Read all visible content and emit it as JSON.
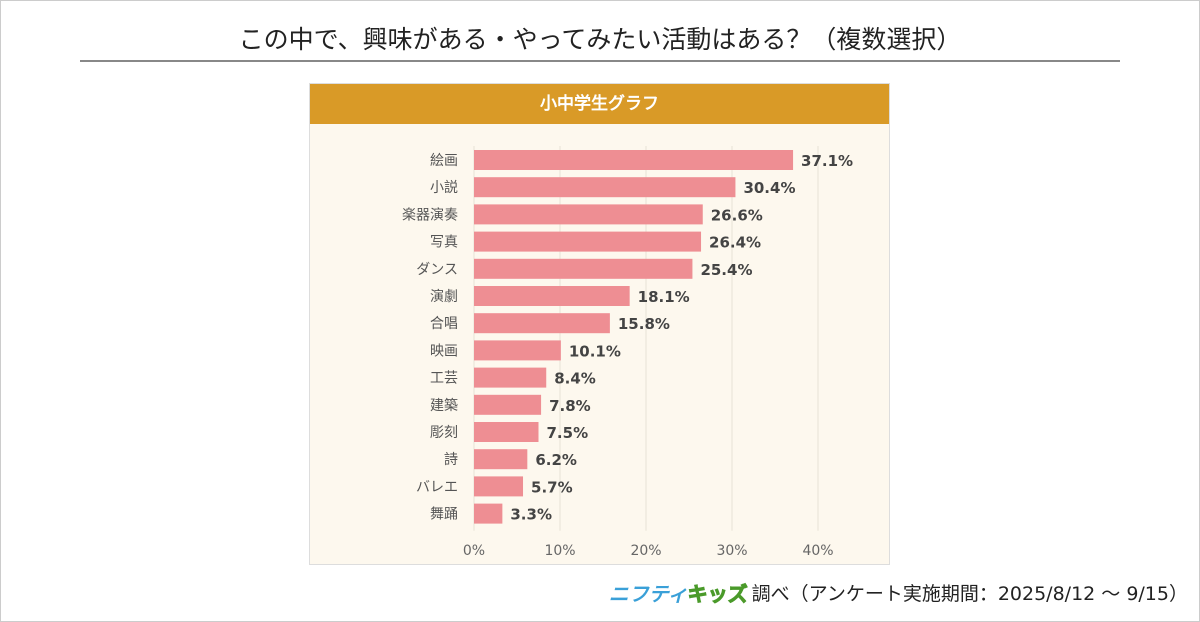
{
  "title": "この中で、興味がある・やってみたい活動はある？（複数選択）",
  "panel_title": "小中学生グラフ",
  "footer": {
    "logo_part1": "ニフティ",
    "logo_part2": "キッズ",
    "text": "調べ（アンケート実施期間：2025/8/12 ～ 9/15）"
  },
  "colors": {
    "bar": "#ee8e93",
    "header": "#d99a27",
    "panel_bg": "#fdf8ee"
  },
  "chart_data": {
    "type": "bar",
    "orientation": "horizontal",
    "categories": [
      "絵画",
      "小説",
      "楽器演奏",
      "写真",
      "ダンス",
      "演劇",
      "合唱",
      "映画",
      "工芸",
      "建築",
      "彫刻",
      "詩",
      "バレエ",
      "舞踊"
    ],
    "values": [
      37.1,
      30.4,
      26.6,
      26.4,
      25.4,
      18.1,
      15.8,
      10.1,
      8.4,
      7.8,
      7.5,
      6.2,
      5.7,
      3.3
    ],
    "data_labels": [
      "37.1%",
      "30.4%",
      "26.6%",
      "26.4%",
      "25.4%",
      "18.1%",
      "15.8%",
      "10.1%",
      "8.4%",
      "7.8%",
      "7.5%",
      "6.2%",
      "5.7%",
      "3.3%"
    ],
    "xlim": [
      0,
      40
    ],
    "xticks": [
      "0%",
      "10%",
      "20%",
      "30%",
      "40%"
    ],
    "grid": true
  }
}
